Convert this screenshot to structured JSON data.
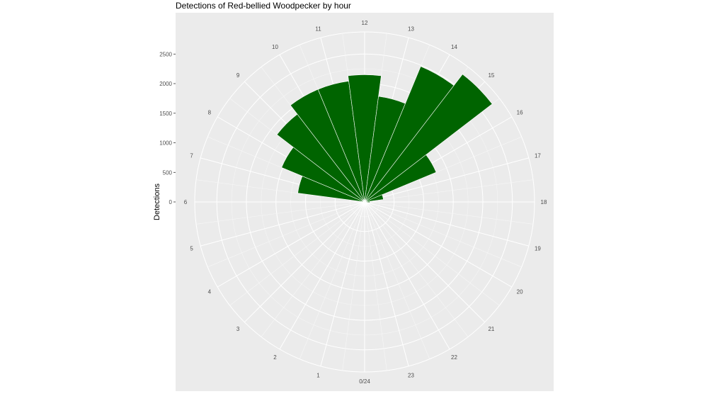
{
  "chart_data": {
    "type": "bar",
    "coord": "polar",
    "title": "Detections of Red-bellied Woodpecker by hour",
    "xlabel": "",
    "ylabel": "Detections",
    "categories": [
      "0/24",
      "1",
      "2",
      "3",
      "4",
      "5",
      "6",
      "7",
      "8",
      "9",
      "10",
      "11",
      "12",
      "13",
      "14",
      "15",
      "16",
      "17",
      "18",
      "19",
      "20",
      "21",
      "22",
      "23"
    ],
    "values": [
      0,
      0,
      0,
      0,
      0,
      0,
      10,
      1140,
      1520,
      1870,
      2060,
      2060,
      2150,
      1800,
      2480,
      2720,
      1310,
      320,
      90,
      0,
      0,
      0,
      0,
      0
    ],
    "ylim": [
      0,
      2900
    ],
    "y_ticks": [
      0,
      500,
      1000,
      1500,
      2000,
      2500
    ],
    "y_tick_labels": [
      "0",
      "500",
      "1000",
      "1500",
      "2000",
      "2500"
    ],
    "bar_color": "#006400",
    "panel_color": "#ebebeb",
    "grid": true,
    "legend": "none"
  }
}
